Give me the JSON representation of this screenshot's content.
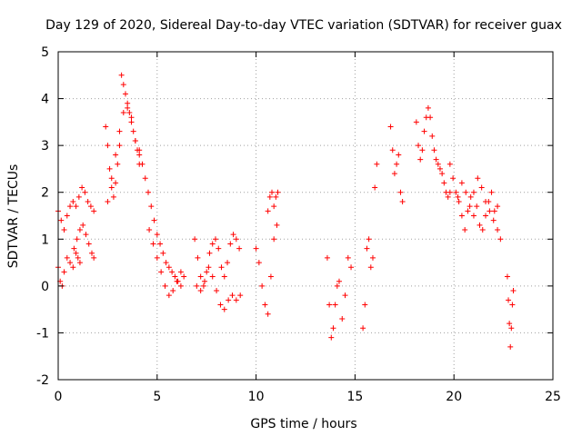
{
  "chart_data": {
    "type": "scatter",
    "title": "Day 129 of 2020, Sidereal Day-to-day VTEC variation (SDTVAR) for receiver guax",
    "xlabel": "GPS time / hours",
    "ylabel": "SDTVAR / TECUs",
    "xlim": [
      0,
      25
    ],
    "ylim": [
      -2,
      5
    ],
    "xticks": [
      "0",
      "5",
      "10",
      "15",
      "20",
      "25"
    ],
    "yticks": [
      "-2",
      "-1",
      "0",
      "1",
      "2",
      "3",
      "4",
      "5"
    ],
    "grid": true,
    "marker": "plus",
    "color": "#ff0000",
    "series": [
      {
        "segments": [
          {
            "x": [
              0.0,
              0.15,
              0.3,
              0.45,
              0.6,
              0.75,
              0.9,
              1.05,
              1.2,
              1.35,
              1.5,
              1.65,
              1.8
            ],
            "y": [
              1.6,
              1.4,
              1.2,
              1.5,
              1.7,
              1.8,
              1.7,
              1.9,
              2.1,
              2.0,
              1.8,
              1.7,
              1.6
            ]
          },
          {
            "x": [
              0.0,
              0.1,
              0.2,
              0.3,
              0.45,
              0.6,
              0.75,
              0.9,
              1.0,
              1.1
            ],
            "y": [
              0.4,
              0.1,
              0.0,
              0.3,
              0.6,
              0.5,
              0.4,
              0.7,
              0.6,
              0.5
            ]
          },
          {
            "x": [
              0.8,
              0.95,
              1.1,
              1.25,
              1.4,
              1.55,
              1.7,
              1.8
            ],
            "y": [
              0.8,
              1.0,
              1.2,
              1.3,
              1.1,
              0.9,
              0.7,
              0.6
            ]
          },
          {
            "x": [
              2.4,
              2.5,
              2.6,
              2.7,
              2.8,
              2.9,
              3.0,
              3.1,
              3.2,
              3.3,
              3.4,
              3.5,
              3.6,
              3.7,
              3.8,
              3.9,
              4.0,
              4.1
            ],
            "y": [
              3.4,
              3.0,
              2.5,
              2.1,
              1.9,
              2.2,
              2.6,
              3.0,
              4.5,
              4.3,
              4.1,
              3.9,
              3.7,
              3.5,
              3.3,
              3.1,
              2.9,
              2.8
            ]
          },
          {
            "x": [
              2.5,
              2.7,
              2.9,
              3.1,
              3.3,
              3.5,
              3.7,
              3.9,
              4.1
            ],
            "y": [
              1.8,
              2.3,
              2.8,
              3.3,
              3.7,
              3.8,
              3.6,
              3.1,
              2.6
            ]
          },
          {
            "x": [
              4.1,
              4.25,
              4.4,
              4.55,
              4.7,
              4.85,
              5.0,
              5.15,
              5.3,
              5.45,
              5.6,
              5.75,
              5.9,
              6.05,
              6.2,
              6.35
            ],
            "y": [
              2.9,
              2.6,
              2.3,
              2.0,
              1.7,
              1.4,
              1.1,
              0.9,
              0.7,
              0.5,
              0.4,
              0.3,
              0.2,
              0.1,
              0.0,
              0.2
            ]
          },
          {
            "x": [
              4.6,
              4.8,
              5.0,
              5.2,
              5.4,
              5.6,
              5.8,
              6.0,
              6.2
            ],
            "y": [
              1.2,
              0.9,
              0.6,
              0.3,
              0.0,
              -0.2,
              -0.1,
              0.1,
              0.3
            ]
          },
          {
            "x": [
              6.9,
              7.05,
              7.2,
              7.35,
              7.5,
              7.65,
              7.8,
              7.95,
              8.1,
              8.25,
              8.4,
              8.55,
              8.7,
              8.85,
              9.0,
              9.15
            ],
            "y": [
              1.0,
              0.6,
              0.2,
              0.0,
              0.3,
              0.7,
              0.9,
              1.0,
              0.8,
              0.4,
              0.2,
              0.5,
              0.9,
              1.1,
              1.0,
              0.8
            ]
          },
          {
            "x": [
              7.0,
              7.2,
              7.4,
              7.6,
              7.8,
              8.0,
              8.2,
              8.4,
              8.6,
              8.8,
              9.0,
              9.2
            ],
            "y": [
              0.0,
              -0.1,
              0.1,
              0.4,
              0.2,
              -0.1,
              -0.4,
              -0.5,
              -0.3,
              -0.2,
              -0.3,
              -0.2
            ]
          },
          {
            "x": [
              10.0,
              10.15,
              10.3,
              10.45,
              10.6,
              10.75,
              10.9,
              11.05
            ],
            "y": [
              0.8,
              0.5,
              0.0,
              -0.4,
              -0.6,
              0.2,
              1.0,
              1.3
            ]
          },
          {
            "x": [
              10.6,
              10.7,
              10.8,
              10.9,
              11.0,
              11.1
            ],
            "y": [
              1.6,
              1.9,
              2.0,
              1.7,
              1.9,
              2.0
            ]
          },
          {
            "x": [
              13.6,
              13.7,
              13.8,
              13.9,
              14.0,
              14.1,
              14.2,
              14.35,
              14.5,
              14.65,
              14.8
            ],
            "y": [
              0.6,
              -0.4,
              -1.1,
              -0.9,
              -0.4,
              0.0,
              0.1,
              -0.7,
              -0.2,
              0.6,
              0.4
            ]
          },
          {
            "x": [
              15.4,
              15.5,
              15.6,
              15.7,
              15.8,
              15.9,
              16.0,
              16.1
            ],
            "y": [
              -0.9,
              -0.4,
              0.8,
              1.0,
              0.4,
              0.6,
              2.1,
              2.6
            ]
          },
          {
            "x": [
              16.8,
              16.9,
              17.0,
              17.1,
              17.2,
              17.3,
              17.4
            ],
            "y": [
              3.4,
              2.9,
              2.4,
              2.6,
              2.8,
              2.0,
              1.8
            ]
          },
          {
            "x": [
              18.1,
              18.2,
              18.3,
              18.4,
              18.5,
              18.6,
              18.7,
              18.8,
              18.9,
              19.0,
              19.1,
              19.2,
              19.3,
              19.4,
              19.5,
              19.6,
              19.7,
              19.8
            ],
            "y": [
              3.5,
              3.0,
              2.7,
              2.9,
              3.3,
              3.6,
              3.8,
              3.6,
              3.2,
              2.9,
              2.7,
              2.6,
              2.5,
              2.4,
              2.2,
              2.0,
              1.9,
              2.0
            ]
          },
          {
            "x": [
              19.8,
              19.95,
              20.1,
              20.25,
              20.4,
              20.55,
              20.7,
              20.85,
              21.0,
              21.15,
              21.3,
              21.45,
              21.6,
              21.75,
              21.9,
              22.05,
              22.2,
              22.35
            ],
            "y": [
              2.6,
              2.3,
              2.0,
              1.8,
              1.5,
              1.2,
              1.6,
              1.9,
              2.0,
              1.7,
              1.3,
              1.2,
              1.5,
              1.8,
              2.0,
              1.6,
              1.2,
              1.0
            ]
          },
          {
            "x": [
              20.2,
              20.4,
              20.6,
              20.8,
              21.0,
              21.2,
              21.4,
              21.6,
              21.8,
              22.0,
              22.2
            ],
            "y": [
              1.9,
              2.2,
              2.0,
              1.7,
              1.5,
              2.3,
              2.1,
              1.8,
              1.6,
              1.4,
              1.7
            ]
          },
          {
            "x": [
              22.7,
              22.75,
              22.8,
              22.85,
              22.9,
              22.95,
              23.0
            ],
            "y": [
              0.2,
              -0.3,
              -0.8,
              -1.3,
              -0.9,
              -0.4,
              -0.1
            ]
          }
        ]
      }
    ]
  }
}
